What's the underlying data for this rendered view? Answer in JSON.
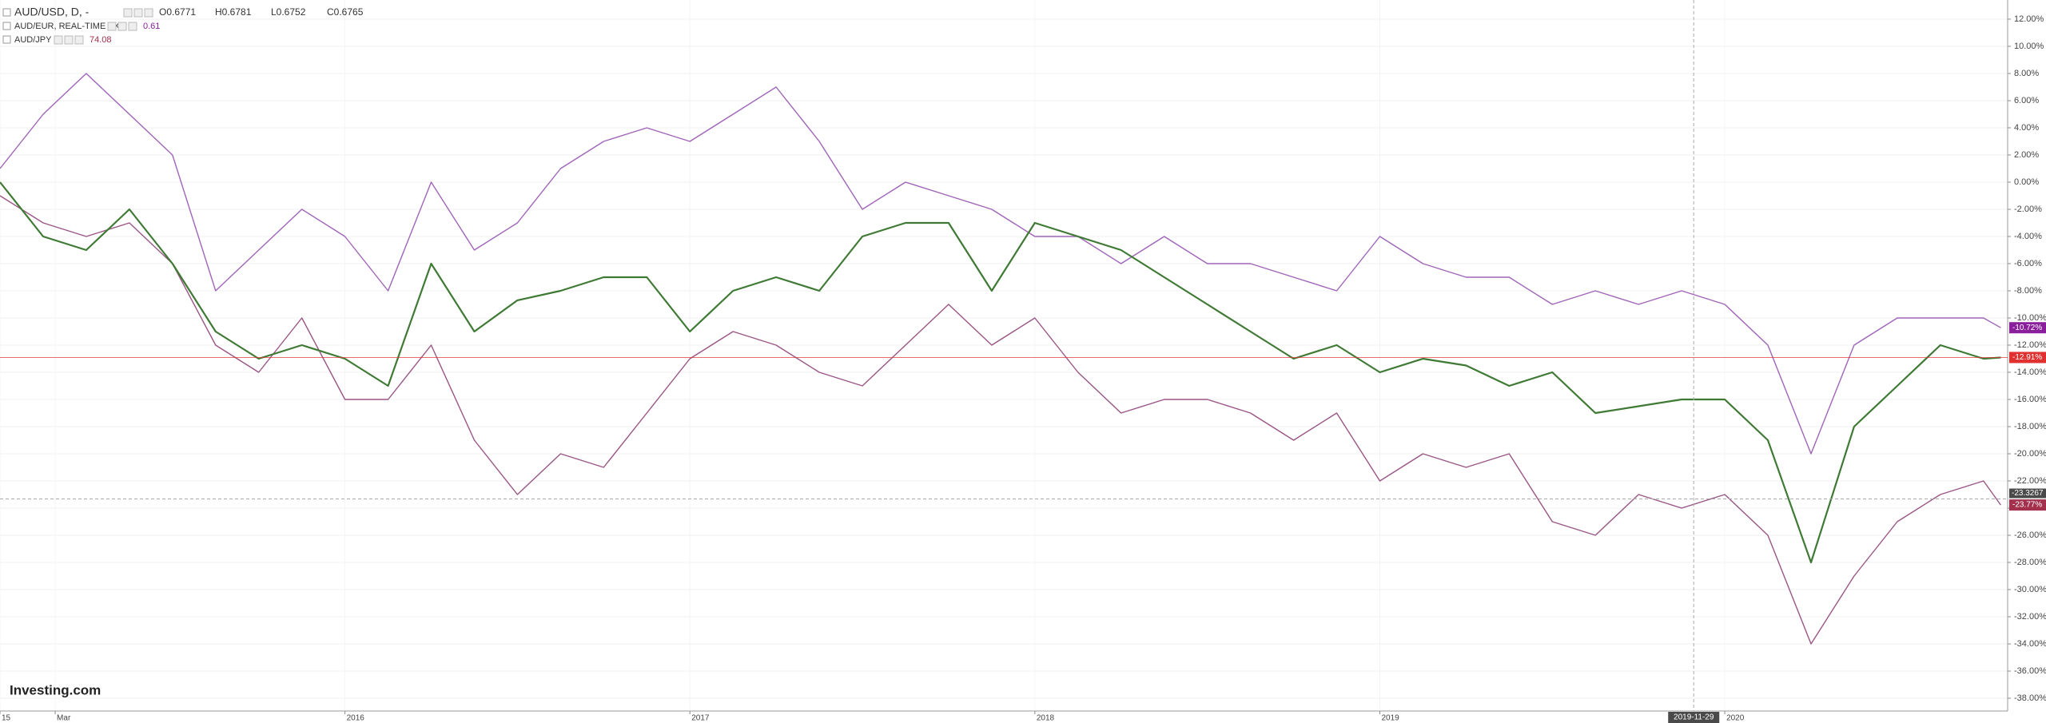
{
  "chart_data": {
    "type": "line",
    "symbol_info": [
      {
        "name": "AUD/USD, D, -",
        "fields": [
          "O0.6771",
          "H0.6781",
          "L0.6752",
          "C0.6765"
        ]
      },
      {
        "name": "AUD/EUR, REAL-TIME FX",
        "fields": [
          "0.61"
        ]
      },
      {
        "name": "AUD/JPY",
        "fields": [
          "74.08"
        ]
      }
    ],
    "watermark": "Investing.com",
    "x": [
      2015,
      2015.125,
      2015.25,
      2015.375,
      2015.5,
      2015.625,
      2015.75,
      2015.875,
      2016,
      2016.125,
      2016.25,
      2016.375,
      2016.5,
      2016.625,
      2016.75,
      2016.875,
      2017,
      2017.125,
      2017.25,
      2017.375,
      2017.5,
      2017.625,
      2017.75,
      2017.875,
      2018,
      2018.125,
      2018.25,
      2018.375,
      2018.5,
      2018.625,
      2018.75,
      2018.875,
      2019,
      2019.125,
      2019.25,
      2019.375,
      2019.5,
      2019.625,
      2019.75,
      2019.875,
      2020,
      2020.125,
      2020.25,
      2020.375,
      2020.5,
      2020.625,
      2020.75,
      2020.8
    ],
    "series": [
      {
        "name": "AUD/USD",
        "color": "#3f7a34",
        "label_color": "#e0302f",
        "values": [
          0,
          -4,
          -5,
          -2,
          -6,
          -11,
          -13,
          -12,
          -13,
          -15,
          -6,
          -11,
          -8.7,
          -8,
          -7,
          -7,
          -11,
          -8,
          -7,
          -8,
          -4,
          -3,
          -3,
          -8,
          -3,
          -4,
          -5,
          -7,
          -9,
          -11,
          -13,
          -12,
          -14,
          -13,
          -13.5,
          -15,
          -14,
          -17,
          -16.5,
          -16,
          -16,
          -19,
          -28,
          -18,
          -15,
          -12,
          -13,
          -12.91
        ],
        "value_labels": [
          null,
          null,
          null,
          null,
          null,
          null,
          null,
          null,
          null,
          null,
          null,
          null,
          null,
          null,
          null,
          null,
          null,
          null,
          null,
          null,
          null,
          null,
          null,
          null,
          null,
          null,
          null,
          null,
          null,
          null,
          null,
          null,
          null,
          null,
          null,
          null,
          null,
          null,
          null,
          null,
          null,
          null,
          null,
          null,
          null,
          null,
          null,
          "-12.91%"
        ]
      },
      {
        "name": "AUD/EUR",
        "color": "#a064b8",
        "label_color": "#8a1f9c",
        "values": [
          1,
          5,
          8,
          5,
          2,
          -8,
          -5,
          -2,
          -4,
          -8,
          0,
          -5,
          -3,
          1,
          3,
          4,
          3,
          5,
          7,
          3,
          -2,
          0,
          -1,
          -2,
          -4,
          -4,
          -6,
          -4,
          -6,
          -6,
          -7,
          -8,
          -4,
          -6,
          -7,
          -7,
          -9,
          -8,
          -9,
          -8,
          -9,
          -12,
          -20,
          -12,
          -10,
          -10,
          -10,
          -10.72
        ],
        "value_labels": [
          null,
          null,
          null,
          null,
          null,
          null,
          null,
          null,
          null,
          null,
          null,
          null,
          null,
          null,
          null,
          null,
          null,
          null,
          null,
          null,
          null,
          null,
          null,
          null,
          null,
          null,
          null,
          null,
          null,
          null,
          null,
          null,
          null,
          null,
          null,
          null,
          null,
          null,
          null,
          null,
          null,
          null,
          null,
          null,
          null,
          null,
          null,
          "-10.72%"
        ]
      },
      {
        "name": "AUD/JPY",
        "color": "#9a5585",
        "label_color": "#a3304c",
        "values": [
          -1,
          -3,
          -4,
          -3,
          -6,
          -12,
          -14,
          -10,
          -16,
          -16,
          -12,
          -19,
          -23,
          -20,
          -21,
          -17,
          -13,
          -11,
          -12,
          -14,
          -15,
          -12,
          -9,
          -12,
          -10,
          -14,
          -17,
          -16,
          -16,
          -17,
          -19,
          -17,
          -22,
          -20,
          -21,
          -20,
          -25,
          -26,
          -23,
          -24,
          -23,
          -26,
          -34,
          -29,
          -25,
          -23,
          -22,
          -23.77
        ],
        "value_labels": [
          null,
          null,
          null,
          null,
          null,
          null,
          null,
          null,
          null,
          null,
          null,
          null,
          null,
          null,
          null,
          null,
          null,
          null,
          null,
          null,
          null,
          null,
          null,
          null,
          null,
          null,
          null,
          null,
          null,
          null,
          null,
          null,
          null,
          null,
          null,
          null,
          null,
          null,
          null,
          null,
          null,
          null,
          null,
          null,
          null,
          null,
          null,
          "-23.77%"
        ]
      }
    ],
    "xlim": [
      2015,
      2020.82
    ],
    "xticks": [
      {
        "value": 2015,
        "label": "15"
      },
      {
        "value": 2015.16,
        "label": "Mar"
      },
      2016,
      2017,
      2018,
      2019,
      2020
    ],
    "ylim": [
      -38.94,
      13.41
    ],
    "yticks": [
      {
        "value": 12,
        "label": "12.00%"
      },
      {
        "value": 10,
        "label": "10.00%"
      },
      {
        "value": 8,
        "label": "8.00%"
      },
      {
        "value": 6,
        "label": "6.00%"
      },
      {
        "value": 4,
        "label": "4.00%"
      },
      {
        "value": 2,
        "label": "2.00%"
      },
      {
        "value": 0,
        "label": "0.00%"
      },
      {
        "value": -2,
        "label": "-2.00%"
      },
      {
        "value": -4,
        "label": "-4.00%"
      },
      {
        "value": -6,
        "label": "-6.00%"
      },
      {
        "value": -8,
        "label": "-8.00%"
      },
      {
        "value": -10,
        "label": "-10.00%"
      },
      {
        "value": -12,
        "label": "-12.00%"
      },
      {
        "value": -14,
        "label": "-14.00%"
      },
      {
        "value": -16,
        "label": "-16.00%"
      },
      {
        "value": -18,
        "label": "-18.00%"
      },
      {
        "value": -20,
        "label": "-20.00%"
      },
      {
        "value": -22,
        "label": "-22.00%"
      },
      {
        "value": -24,
        "label": "-24.00%"
      },
      {
        "value": -26,
        "label": "-26.00%"
      },
      {
        "value": -28,
        "label": "-28.00%"
      },
      {
        "value": -30,
        "label": "-30.00%"
      },
      {
        "value": -32,
        "label": "-32.00%"
      },
      {
        "value": -34,
        "label": "-34.00%"
      },
      {
        "value": -36,
        "label": "-36.00%"
      },
      {
        "value": -38,
        "label": "-38.00%"
      }
    ],
    "crosshair": {
      "x": {
        "value": 2019.91,
        "label": "2019-11-29"
      },
      "y": -23.3267
    },
    "grid": true
  }
}
